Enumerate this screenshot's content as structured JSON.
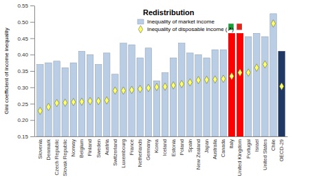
{
  "chart_data": {
    "type": "bar",
    "title": "Redistribution",
    "y_label": "Gini coefficient of income inequality",
    "categories": [
      "Slovenia",
      "Denmark",
      "Czech Republic",
      "Slovak Republic",
      "Norway",
      "Belgium",
      "Finland",
      "Sweden",
      "Austria",
      "Switzerland",
      "Luxembourg",
      "France",
      "Netherlands",
      "Germany",
      "Korea",
      "Iceland",
      "Estonia",
      "Poland",
      "Spain",
      "New Zealand",
      "Japan",
      "Australia",
      "Canada",
      "Italy",
      "United Kingdom",
      "Portugal",
      "Israel",
      "United States",
      "Chile",
      "OECD-29"
    ],
    "series": [
      {
        "name": "Inequality of market income",
        "type": "bar",
        "colors": [
          "#b9cde5",
          "#b9cde5",
          "#b9cde5",
          "#b9cde5",
          "#b9cde5",
          "#b9cde5",
          "#b9cde5",
          "#b9cde5",
          "#b9cde5",
          "#b9cde5",
          "#b9cde5",
          "#b9cde5",
          "#b9cde5",
          "#b9cde5",
          "#b9cde5",
          "#b9cde5",
          "#b9cde5",
          "#b9cde5",
          "#b9cde5",
          "#b9cde5",
          "#b9cde5",
          "#b9cde5",
          "#b9cde5",
          "#ff0000",
          "#ff0000",
          "#b9cde5",
          "#b9cde5",
          "#b9cde5",
          "#b9cde5",
          "#1f3864"
        ],
        "values": [
          0.37,
          0.375,
          0.38,
          0.36,
          0.375,
          0.41,
          0.4,
          0.37,
          0.405,
          0.34,
          0.435,
          0.43,
          0.39,
          0.42,
          0.32,
          0.345,
          0.39,
          0.435,
          0.405,
          0.4,
          0.39,
          0.415,
          0.415,
          0.465,
          0.465,
          0.455,
          0.465,
          0.455,
          0.525,
          0.41
        ]
      },
      {
        "name": "Inequality of disposable income (↗)",
        "type": "scatter",
        "marker": "diamond",
        "color": "#ffff66",
        "values": [
          0.228,
          0.24,
          0.252,
          0.253,
          0.255,
          0.256,
          0.258,
          0.258,
          0.26,
          0.29,
          0.29,
          0.292,
          0.295,
          0.298,
          0.301,
          0.302,
          0.306,
          0.31,
          0.315,
          0.322,
          0.323,
          0.324,
          0.326,
          0.334,
          0.345,
          0.345,
          0.36,
          0.37,
          0.495,
          0.303
        ]
      }
    ],
    "ylim": [
      0.15,
      0.55
    ],
    "yticks": [
      0.15,
      {
        "value": 0.2,
        "label": "0.20"
      },
      0.25,
      {
        "value": 0.3,
        "label": "0.30"
      },
      0.35,
      {
        "value": 0.4,
        "label": "0.40"
      },
      0.45,
      {
        "value": 0.5,
        "label": "0.50"
      },
      0.55
    ],
    "grid": false,
    "legend": "top-left"
  }
}
